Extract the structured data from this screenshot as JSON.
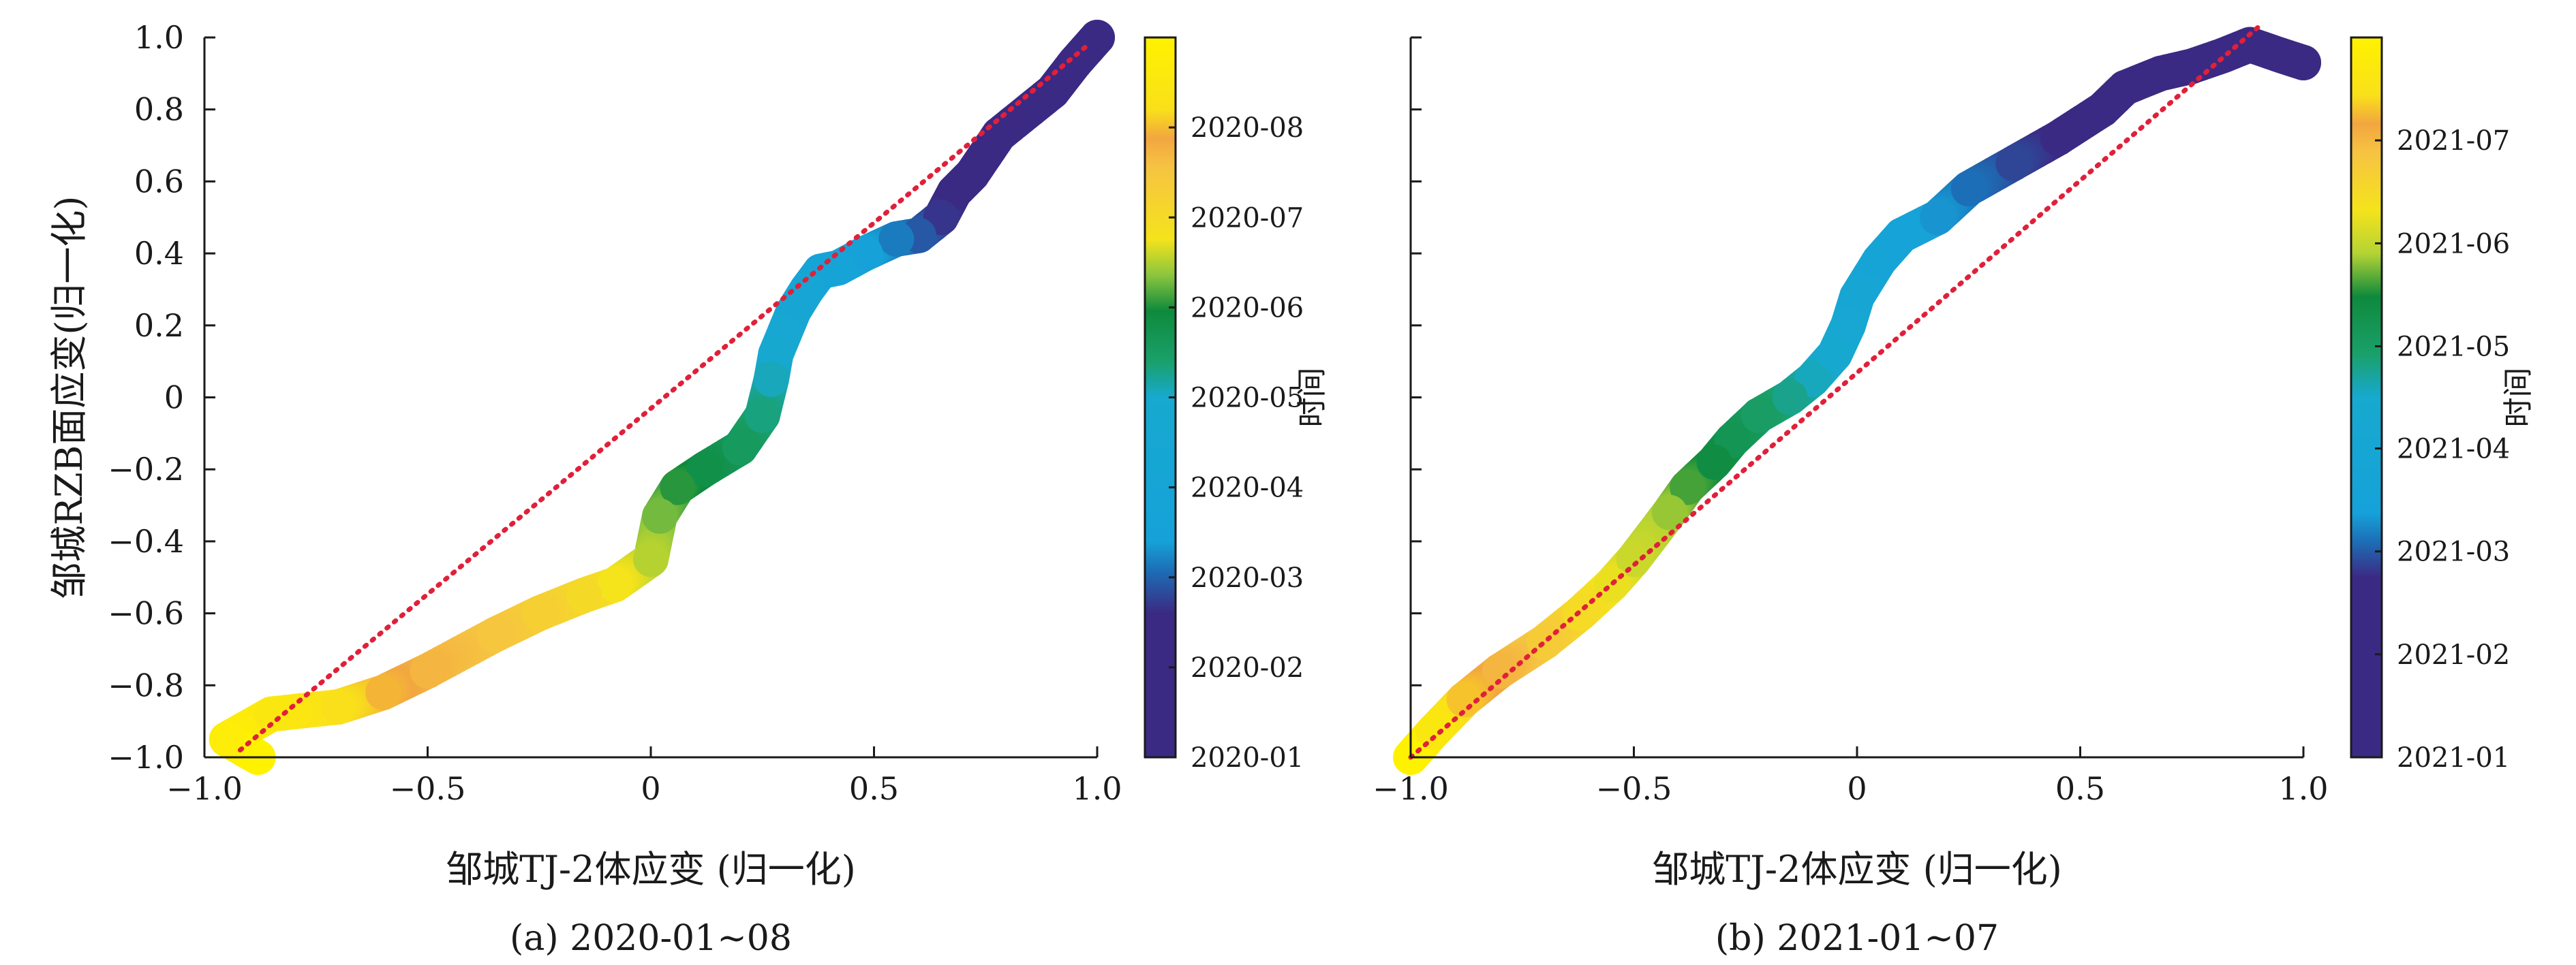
{
  "chart_data": [
    {
      "type": "scatter",
      "caption": "(a) 2020-01~08",
      "xlabel": "邹城TJ-2体应变 (归一化)",
      "ylabel": "邹城RZB面应变(归一化)",
      "xlim": [
        -1.0,
        1.0
      ],
      "ylim": [
        -1.0,
        1.0
      ],
      "x_ticks": [
        -1.0,
        -0.5,
        0,
        0.5,
        1.0
      ],
      "x_tick_labels": [
        "−1.0",
        "−0.5",
        "0",
        "0.5",
        "1.0"
      ],
      "y_ticks": [
        -1.0,
        -0.8,
        -0.6,
        -0.4,
        -0.2,
        0,
        0.2,
        0.4,
        0.6,
        0.8,
        1.0
      ],
      "y_tick_labels": [
        "−1.0",
        "−0.8",
        "−0.6",
        "−0.4",
        "−0.2",
        "0",
        "0.2",
        "0.4",
        "0.6",
        "0.8",
        "1.0"
      ],
      "reference_line": {
        "style": "dotted",
        "color": "#e0203a",
        "from": [
          -0.92,
          -0.98
        ],
        "to": [
          0.98,
          0.98
        ]
      },
      "points": [
        {
          "x": 1.0,
          "y": 1.0,
          "t": 0.0
        },
        {
          "x": 0.95,
          "y": 0.93,
          "t": 0.03
        },
        {
          "x": 0.9,
          "y": 0.85,
          "t": 0.06
        },
        {
          "x": 0.85,
          "y": 0.8,
          "t": 0.09
        },
        {
          "x": 0.78,
          "y": 0.73,
          "t": 0.12
        },
        {
          "x": 0.72,
          "y": 0.62,
          "t": 0.15
        },
        {
          "x": 0.68,
          "y": 0.57,
          "t": 0.18
        },
        {
          "x": 0.65,
          "y": 0.5,
          "t": 0.21
        },
        {
          "x": 0.6,
          "y": 0.45,
          "t": 0.24
        },
        {
          "x": 0.55,
          "y": 0.44,
          "t": 0.27
        },
        {
          "x": 0.48,
          "y": 0.4,
          "t": 0.3
        },
        {
          "x": 0.42,
          "y": 0.36,
          "t": 0.33
        },
        {
          "x": 0.38,
          "y": 0.35,
          "t": 0.36
        },
        {
          "x": 0.35,
          "y": 0.3,
          "t": 0.39
        },
        {
          "x": 0.32,
          "y": 0.24,
          "t": 0.42
        },
        {
          "x": 0.3,
          "y": 0.18,
          "t": 0.45
        },
        {
          "x": 0.28,
          "y": 0.12,
          "t": 0.48
        },
        {
          "x": 0.27,
          "y": 0.05,
          "t": 0.51
        },
        {
          "x": 0.25,
          "y": -0.05,
          "t": 0.54
        },
        {
          "x": 0.2,
          "y": -0.14,
          "t": 0.57
        },
        {
          "x": 0.12,
          "y": -0.2,
          "t": 0.6
        },
        {
          "x": 0.06,
          "y": -0.25,
          "t": 0.63
        },
        {
          "x": 0.02,
          "y": -0.33,
          "t": 0.66
        },
        {
          "x": 0.0,
          "y": -0.45,
          "t": 0.69
        },
        {
          "x": -0.08,
          "y": -0.52,
          "t": 0.72
        },
        {
          "x": -0.15,
          "y": -0.55,
          "t": 0.75
        },
        {
          "x": -0.25,
          "y": -0.6,
          "t": 0.78
        },
        {
          "x": -0.35,
          "y": -0.66,
          "t": 0.81
        },
        {
          "x": -0.5,
          "y": -0.76,
          "t": 0.84
        },
        {
          "x": -0.6,
          "y": -0.82,
          "t": 0.87
        },
        {
          "x": -0.7,
          "y": -0.86,
          "t": 0.9
        },
        {
          "x": -0.85,
          "y": -0.88,
          "t": 0.94
        },
        {
          "x": -0.95,
          "y": -0.95,
          "t": 0.97
        },
        {
          "x": -0.88,
          "y": -1.0,
          "t": 1.0
        }
      ],
      "colorbar": {
        "label": "时间",
        "range": [
          0,
          1
        ],
        "ticks": [
          {
            "value": 0.0,
            "label": "2020-01"
          },
          {
            "value": 0.125,
            "label": "2020-02"
          },
          {
            "value": 0.25,
            "label": "2020-03"
          },
          {
            "value": 0.375,
            "label": "2020-04"
          },
          {
            "value": 0.5,
            "label": "2020-05"
          },
          {
            "value": 0.625,
            "label": "2020-06"
          },
          {
            "value": 0.75,
            "label": "2020-07"
          },
          {
            "value": 0.875,
            "label": "2020-08"
          }
        ],
        "stops": [
          {
            "t": 0.0,
            "color": "#3b2a83"
          },
          {
            "t": 0.2,
            "color": "#3b2a83"
          },
          {
            "t": 0.26,
            "color": "#1c6fb6"
          },
          {
            "t": 0.3,
            "color": "#16a2d9"
          },
          {
            "t": 0.5,
            "color": "#17a9cf"
          },
          {
            "t": 0.55,
            "color": "#1aa06a"
          },
          {
            "t": 0.62,
            "color": "#0e8a3c"
          },
          {
            "t": 0.67,
            "color": "#8cc63e"
          },
          {
            "t": 0.72,
            "color": "#f5e31c"
          },
          {
            "t": 0.82,
            "color": "#f6c342"
          },
          {
            "t": 0.86,
            "color": "#f2a640"
          },
          {
            "t": 0.9,
            "color": "#f9e01a"
          },
          {
            "t": 1.0,
            "color": "#fff200"
          }
        ]
      }
    },
    {
      "type": "scatter",
      "caption": "(b) 2021-01~07",
      "xlabel": "邹城TJ-2体应变 (归一化)",
      "ylabel": "",
      "xlim": [
        -1.0,
        1.0
      ],
      "ylim": [
        -1.0,
        1.0
      ],
      "x_ticks": [
        -1.0,
        -0.5,
        0,
        0.5,
        1.0
      ],
      "x_tick_labels": [
        "−1.0",
        "−0.5",
        "0",
        "0.5",
        "1.0"
      ],
      "y_ticks": [
        -1.0,
        -0.8,
        -0.6,
        -0.4,
        -0.2,
        0,
        0.2,
        0.4,
        0.6,
        0.8,
        1.0
      ],
      "y_tick_labels": [],
      "reference_line": {
        "style": "dotted",
        "color": "#e0203a",
        "from": [
          -1.0,
          -1.0
        ],
        "to": [
          0.9,
          1.03
        ]
      },
      "points": [
        {
          "x": 1.0,
          "y": 0.93,
          "t": 0.0
        },
        {
          "x": 0.95,
          "y": 0.95,
          "t": 0.03
        },
        {
          "x": 0.88,
          "y": 0.98,
          "t": 0.06
        },
        {
          "x": 0.82,
          "y": 0.95,
          "t": 0.09
        },
        {
          "x": 0.75,
          "y": 0.92,
          "t": 0.12
        },
        {
          "x": 0.68,
          "y": 0.9,
          "t": 0.15
        },
        {
          "x": 0.6,
          "y": 0.86,
          "t": 0.18
        },
        {
          "x": 0.55,
          "y": 0.8,
          "t": 0.21
        },
        {
          "x": 0.45,
          "y": 0.72,
          "t": 0.24
        },
        {
          "x": 0.35,
          "y": 0.65,
          "t": 0.27
        },
        {
          "x": 0.25,
          "y": 0.58,
          "t": 0.3
        },
        {
          "x": 0.18,
          "y": 0.5,
          "t": 0.33
        },
        {
          "x": 0.1,
          "y": 0.45,
          "t": 0.36
        },
        {
          "x": 0.05,
          "y": 0.38,
          "t": 0.39
        },
        {
          "x": 0.0,
          "y": 0.28,
          "t": 0.42
        },
        {
          "x": -0.02,
          "y": 0.2,
          "t": 0.45
        },
        {
          "x": -0.05,
          "y": 0.12,
          "t": 0.48
        },
        {
          "x": -0.1,
          "y": 0.05,
          "t": 0.51
        },
        {
          "x": -0.15,
          "y": 0.0,
          "t": 0.54
        },
        {
          "x": -0.22,
          "y": -0.05,
          "t": 0.57
        },
        {
          "x": -0.28,
          "y": -0.12,
          "t": 0.6
        },
        {
          "x": -0.32,
          "y": -0.18,
          "t": 0.63
        },
        {
          "x": -0.38,
          "y": -0.25,
          "t": 0.66
        },
        {
          "x": -0.42,
          "y": -0.32,
          "t": 0.69
        },
        {
          "x": -0.5,
          "y": -0.45,
          "t": 0.72
        },
        {
          "x": -0.55,
          "y": -0.52,
          "t": 0.75
        },
        {
          "x": -0.62,
          "y": -0.6,
          "t": 0.78
        },
        {
          "x": -0.7,
          "y": -0.68,
          "t": 0.82
        },
        {
          "x": -0.8,
          "y": -0.76,
          "t": 0.86
        },
        {
          "x": -0.88,
          "y": -0.84,
          "t": 0.9
        },
        {
          "x": -0.95,
          "y": -0.93,
          "t": 0.95
        },
        {
          "x": -1.0,
          "y": -1.0,
          "t": 1.0
        }
      ],
      "colorbar": {
        "label": "时间",
        "range": [
          0,
          1
        ],
        "ticks": [
          {
            "value": 0.0,
            "label": "2021-01"
          },
          {
            "value": 0.143,
            "label": "2021-02"
          },
          {
            "value": 0.286,
            "label": "2021-03"
          },
          {
            "value": 0.429,
            "label": "2021-04"
          },
          {
            "value": 0.571,
            "label": "2021-05"
          },
          {
            "value": 0.714,
            "label": "2021-06"
          },
          {
            "value": 0.857,
            "label": "2021-07"
          }
        ],
        "stops": [
          {
            "t": 0.0,
            "color": "#3b2a83"
          },
          {
            "t": 0.25,
            "color": "#3b2a83"
          },
          {
            "t": 0.3,
            "color": "#1c6fb6"
          },
          {
            "t": 0.34,
            "color": "#16a2d9"
          },
          {
            "t": 0.5,
            "color": "#17a9cf"
          },
          {
            "t": 0.56,
            "color": "#1aa06a"
          },
          {
            "t": 0.64,
            "color": "#0e8a3c"
          },
          {
            "t": 0.7,
            "color": "#b4d334"
          },
          {
            "t": 0.76,
            "color": "#f5e31c"
          },
          {
            "t": 0.84,
            "color": "#f6c342"
          },
          {
            "t": 0.88,
            "color": "#f2a640"
          },
          {
            "t": 0.92,
            "color": "#f9e01a"
          },
          {
            "t": 1.0,
            "color": "#fff200"
          }
        ]
      }
    }
  ]
}
